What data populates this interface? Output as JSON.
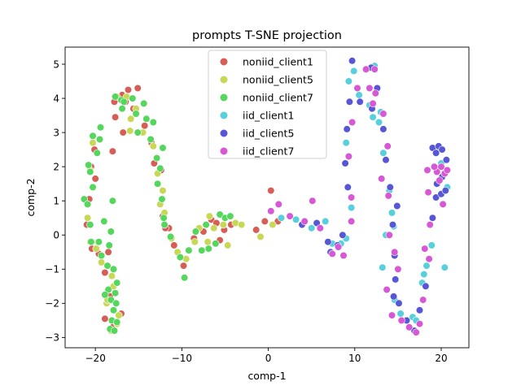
{
  "chart_data": {
    "type": "scatter",
    "title": "prompts T-SNE projection",
    "xlabel": "comp-1",
    "ylabel": "comp-2",
    "xlim": [
      -23.5,
      23.2
    ],
    "ylim": [
      -3.3,
      5.5
    ],
    "xticks": [
      -20,
      -10,
      0,
      10,
      20
    ],
    "yticks": [
      -3,
      -2,
      -1,
      0,
      1,
      2,
      3,
      4,
      5
    ],
    "grid": false,
    "legend_position": "top-center",
    "series": [
      {
        "name": "noniid_client1",
        "color": "#d65e57",
        "points": [
          [
            -17.8,
            3.9
          ],
          [
            -16.9,
            4.1
          ],
          [
            -16.2,
            4.25
          ],
          [
            -16.5,
            3.9
          ],
          [
            -15.1,
            4.3
          ],
          [
            -15.6,
            3.7
          ],
          [
            -14.3,
            3.2
          ],
          [
            -13.5,
            2.7
          ],
          [
            -12.4,
            1.9
          ],
          [
            -13.2,
            2.1
          ],
          [
            -18.0,
            2.45
          ],
          [
            -20.1,
            2.5
          ],
          [
            -20.5,
            2.0
          ],
          [
            -20.0,
            1.65
          ],
          [
            -20.7,
            1.05
          ],
          [
            -21.0,
            0.3
          ],
          [
            -20.4,
            -0.4
          ],
          [
            -19.6,
            -0.55
          ],
          [
            -18.5,
            -0.5
          ],
          [
            -18.9,
            -1.1
          ],
          [
            -18.3,
            -1.8
          ],
          [
            -18.9,
            -2.45
          ],
          [
            -18.0,
            -2.7
          ],
          [
            -16.8,
            3.0
          ],
          [
            -17.7,
            3.45
          ],
          [
            -12.2,
            0.55
          ],
          [
            -11.5,
            0.2
          ],
          [
            -10.9,
            -0.3
          ],
          [
            -9.8,
            -0.9
          ],
          [
            -8.6,
            -0.1
          ],
          [
            -7.5,
            0.1
          ],
          [
            -6.6,
            0.45
          ],
          [
            -5.6,
            -0.15
          ],
          [
            -5.1,
            0.15
          ],
          [
            -4.3,
            0.3
          ],
          [
            -1.4,
            0.15
          ],
          [
            -0.4,
            0.4
          ],
          [
            0.3,
            1.3
          ],
          [
            1.1,
            0.4
          ],
          [
            -17.0,
            -2.3
          ],
          [
            -11.9,
            0.2
          ],
          [
            -6.0,
            0.35
          ]
        ]
      },
      {
        "name": "noniid_client5",
        "color": "#c8d856",
        "points": [
          [
            -17.5,
            4.05
          ],
          [
            -16.4,
            4.05
          ],
          [
            -15.3,
            3.7
          ],
          [
            -15.9,
            3.4
          ],
          [
            -14.5,
            3.0
          ],
          [
            -13.3,
            2.6
          ],
          [
            -12.8,
            1.8
          ],
          [
            -12.2,
            1.3
          ],
          [
            -20.3,
            2.7
          ],
          [
            -20.6,
            1.9
          ],
          [
            -20.9,
            0.5
          ],
          [
            -20.6,
            -0.2
          ],
          [
            -19.9,
            -0.4
          ],
          [
            -19.3,
            -0.8
          ],
          [
            -18.1,
            -1.2
          ],
          [
            -18.7,
            -2.0
          ],
          [
            -18.2,
            -2.8
          ],
          [
            -17.5,
            -2.6
          ],
          [
            -17.9,
            -1.5
          ],
          [
            -12.5,
            0.9
          ],
          [
            -11.2,
            -0.1
          ],
          [
            -10.5,
            -0.5
          ],
          [
            -9.5,
            -0.7
          ],
          [
            -8.0,
            0.2
          ],
          [
            -7.0,
            -0.2
          ],
          [
            -6.3,
            0.2
          ],
          [
            -5.2,
            0.3
          ],
          [
            -4.7,
            -0.3
          ],
          [
            -3.8,
            0.35
          ],
          [
            -3.1,
            0.3
          ],
          [
            -0.9,
            -0.05
          ],
          [
            0.5,
            0.3
          ],
          [
            -19.7,
            -0.2
          ],
          [
            -18.6,
            -1.9
          ],
          [
            -12.0,
            0.65
          ],
          [
            -16.0,
            3.05
          ],
          [
            -18.2,
            0.1
          ],
          [
            -8.5,
            -0.2
          ],
          [
            -17.3,
            -2.35
          ],
          [
            -6.8,
            0.55
          ]
        ]
      },
      {
        "name": "noniid_client7",
        "color": "#55d65c",
        "points": [
          [
            -17.7,
            4.05
          ],
          [
            -17.0,
            3.95
          ],
          [
            -16.7,
            3.9
          ],
          [
            -15.7,
            4.0
          ],
          [
            -15.3,
            3.55
          ],
          [
            -14.4,
            3.85
          ],
          [
            -14.1,
            3.4
          ],
          [
            -13.6,
            2.8
          ],
          [
            -12.9,
            2.25
          ],
          [
            -12.2,
            2.55
          ],
          [
            -12.5,
            1.95
          ],
          [
            -12.3,
            1.05
          ],
          [
            -12.1,
            0.5
          ],
          [
            -20.3,
            2.9
          ],
          [
            -19.4,
            3.15
          ],
          [
            -19.5,
            2.8
          ],
          [
            -19.8,
            2.4
          ],
          [
            -20.8,
            2.05
          ],
          [
            -20.6,
            1.85
          ],
          [
            -20.3,
            1.4
          ],
          [
            -21.3,
            1.05
          ],
          [
            -20.9,
            0.9
          ],
          [
            -20.6,
            0.3
          ],
          [
            -20.5,
            -0.2
          ],
          [
            -19.6,
            -0.2
          ],
          [
            -19.0,
            0.4
          ],
          [
            -18.2,
            0.1
          ],
          [
            -18.4,
            -0.3
          ],
          [
            -19.3,
            -0.6
          ],
          [
            -18.6,
            -0.9
          ],
          [
            -17.9,
            -1.0
          ],
          [
            -17.5,
            -1.4
          ],
          [
            -17.7,
            -1.7
          ],
          [
            -18.5,
            -1.6
          ],
          [
            -18.9,
            -1.75
          ],
          [
            -18.2,
            -1.9
          ],
          [
            -17.6,
            -2.0
          ],
          [
            -17.9,
            -2.2
          ],
          [
            -18.1,
            -2.5
          ],
          [
            -17.5,
            -2.55
          ],
          [
            -18.3,
            -2.75
          ],
          [
            -17.8,
            -2.8
          ],
          [
            -11.3,
            -0.05
          ],
          [
            -10.2,
            -0.65
          ],
          [
            -9.7,
            -1.25
          ],
          [
            -9.2,
            -0.45
          ],
          [
            -8.4,
            0.1
          ],
          [
            -7.7,
            -0.45
          ],
          [
            -6.9,
            -0.4
          ],
          [
            -6.1,
            -0.25
          ],
          [
            -5.6,
            0.6
          ],
          [
            -5.0,
            0.5
          ],
          [
            -4.4,
            0.55
          ],
          [
            -7.2,
            0.3
          ],
          [
            -12.0,
            0.3
          ],
          [
            -12.8,
            1.5
          ],
          [
            -13.3,
            3.3
          ],
          [
            -16.9,
            3.7
          ],
          [
            -15.1,
            3.0
          ],
          [
            -18.0,
            1.0
          ]
        ]
      },
      {
        "name": "iid_client1",
        "color": "#57cfdc",
        "points": [
          [
            1.5,
            0.5
          ],
          [
            3.2,
            0.45
          ],
          [
            5.0,
            0.2
          ],
          [
            6.6,
            0.4
          ],
          [
            7.4,
            -0.25
          ],
          [
            8.4,
            -0.25
          ],
          [
            9.6,
            0.8
          ],
          [
            9.0,
            2.7
          ],
          [
            9.3,
            4.5
          ],
          [
            9.9,
            4.8
          ],
          [
            10.5,
            4.1
          ],
          [
            11.7,
            3.8
          ],
          [
            12.3,
            4.95
          ],
          [
            13.0,
            3.6
          ],
          [
            12.8,
            3.3
          ],
          [
            13.3,
            2.4
          ],
          [
            14.0,
            1.3
          ],
          [
            14.3,
            0.65
          ],
          [
            14.5,
            0.25
          ],
          [
            13.2,
            -0.95
          ],
          [
            14.6,
            -1.9
          ],
          [
            15.3,
            -2.3
          ],
          [
            16.7,
            -2.4
          ],
          [
            17.8,
            -1.4
          ],
          [
            18.3,
            -0.9
          ],
          [
            18.9,
            -0.3
          ],
          [
            19.3,
            2.5
          ],
          [
            20.0,
            2.1
          ],
          [
            20.7,
            1.4
          ],
          [
            20.4,
            -0.95
          ],
          [
            17.1,
            -2.5
          ],
          [
            12.1,
            3.45
          ],
          [
            9.0,
            -0.1
          ],
          [
            13.6,
            0.0
          ],
          [
            18.0,
            -1.15
          ]
        ]
      },
      {
        "name": "iid_client5",
        "color": "#5756d6",
        "points": [
          [
            3.9,
            0.3
          ],
          [
            5.6,
            0.35
          ],
          [
            6.9,
            -0.2
          ],
          [
            7.2,
            -0.5
          ],
          [
            8.0,
            -0.3
          ],
          [
            8.6,
            0.0
          ],
          [
            9.2,
            1.4
          ],
          [
            9.1,
            3.1
          ],
          [
            9.4,
            3.9
          ],
          [
            9.7,
            5.1
          ],
          [
            10.6,
            3.9
          ],
          [
            11.9,
            4.9
          ],
          [
            12.6,
            4.3
          ],
          [
            13.3,
            3.1
          ],
          [
            13.6,
            2.2
          ],
          [
            14.1,
            1.4
          ],
          [
            14.4,
            0.3
          ],
          [
            14.6,
            -0.6
          ],
          [
            14.7,
            -1.3
          ],
          [
            14.5,
            -1.8
          ],
          [
            15.1,
            -2.0
          ],
          [
            16.0,
            -2.5
          ],
          [
            16.9,
            -2.8
          ],
          [
            17.5,
            -2.2
          ],
          [
            18.2,
            -1.5
          ],
          [
            18.6,
            -0.7
          ],
          [
            19.0,
            0.5
          ],
          [
            19.4,
            1.1
          ],
          [
            19.0,
            2.55
          ],
          [
            19.4,
            2.4
          ],
          [
            19.7,
            2.6
          ],
          [
            20.1,
            2.5
          ],
          [
            20.6,
            2.2
          ],
          [
            20.1,
            1.7
          ],
          [
            19.5,
            1.5
          ],
          [
            20.0,
            1.2
          ],
          [
            20.5,
            1.3
          ],
          [
            12.0,
            3.7
          ],
          [
            14.9,
            0.85
          ],
          [
            8.9,
            2.1
          ]
        ]
      },
      {
        "name": "iid_client7",
        "color": "#d758d4",
        "points": [
          [
            0.3,
            0.7
          ],
          [
            1.2,
            0.9
          ],
          [
            2.5,
            0.55
          ],
          [
            4.2,
            0.4
          ],
          [
            5.1,
            1.0
          ],
          [
            6.0,
            0.2
          ],
          [
            7.4,
            -0.55
          ],
          [
            8.1,
            -0.35
          ],
          [
            8.7,
            -0.6
          ],
          [
            9.6,
            0.4
          ],
          [
            9.6,
            1.1
          ],
          [
            9.3,
            2.3
          ],
          [
            9.7,
            3.3
          ],
          [
            10.3,
            4.3
          ],
          [
            11.3,
            4.85
          ],
          [
            11.7,
            4.3
          ],
          [
            12.1,
            3.85
          ],
          [
            12.4,
            4.15
          ],
          [
            13.3,
            3.55
          ],
          [
            13.1,
            1.65
          ],
          [
            13.9,
            1.15
          ],
          [
            14.0,
            0.0
          ],
          [
            14.6,
            -0.5
          ],
          [
            13.7,
            -1.6
          ],
          [
            14.3,
            -2.35
          ],
          [
            15.4,
            -2.5
          ],
          [
            16.3,
            -2.7
          ],
          [
            17.1,
            -2.85
          ],
          [
            17.5,
            -2.6
          ],
          [
            17.9,
            -1.9
          ],
          [
            18.1,
            -0.4
          ],
          [
            18.6,
            -0.7
          ],
          [
            18.5,
            1.25
          ],
          [
            18.4,
            1.9
          ],
          [
            19.5,
            1.85
          ],
          [
            19.8,
            1.6
          ],
          [
            20.0,
            2.0
          ],
          [
            20.4,
            1.8
          ],
          [
            20.2,
            0.9
          ],
          [
            18.7,
            0.3
          ],
          [
            19.2,
            2.0
          ],
          [
            20.7,
            1.9
          ],
          [
            13.8,
            2.6
          ],
          [
            15.0,
            -1.0
          ],
          [
            12.3,
            4.85
          ]
        ]
      }
    ]
  }
}
